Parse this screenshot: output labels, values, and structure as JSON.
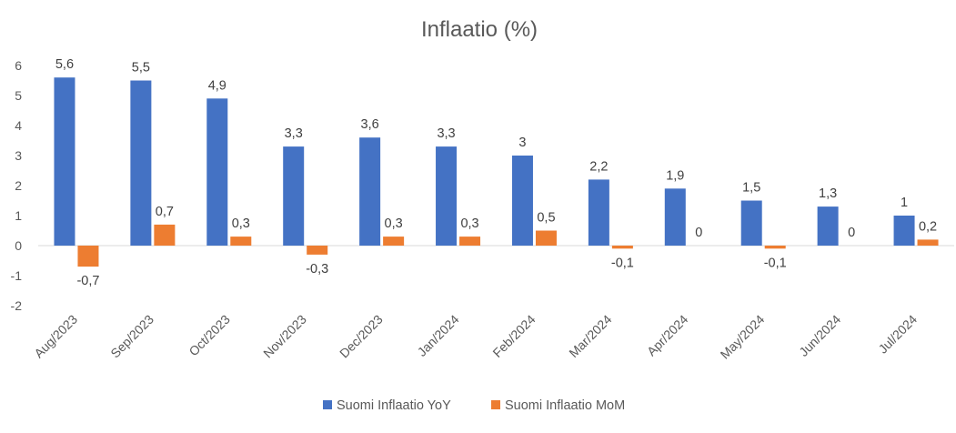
{
  "chart_data": {
    "type": "bar",
    "title": "Inflaatio (%)",
    "categories": [
      "Aug/2023",
      "Sep/2023",
      "Oct/2023",
      "Nov/2023",
      "Dec/2023",
      "Jan/2024",
      "Feb/2024",
      "Mar/2024",
      "Apr/2024",
      "May/2024",
      "Jun/2024",
      "Jul/2024"
    ],
    "series": [
      {
        "name": "Suomi Inflaatio YoY",
        "color": "#4472C4",
        "values": [
          5.6,
          5.5,
          4.9,
          3.3,
          3.6,
          3.3,
          3.0,
          2.2,
          1.9,
          1.5,
          1.3,
          1.0
        ],
        "labels": [
          "5,6",
          "5,5",
          "4,9",
          "3,3",
          "3,6",
          "3,3",
          "3",
          "2,2",
          "1,9",
          "1,5",
          "1,3",
          "1"
        ]
      },
      {
        "name": "Suomi Inflaatio MoM",
        "color": "#ED7D31",
        "values": [
          -0.7,
          0.7,
          0.3,
          -0.3,
          0.3,
          0.3,
          0.5,
          -0.1,
          0,
          -0.1,
          0,
          0.2
        ],
        "labels": [
          "-0,7",
          "0,7",
          "0,3",
          "-0,3",
          "0,3",
          "0,3",
          "0,5",
          "-0,1",
          "0",
          "-0,1",
          "0",
          "0,2"
        ]
      }
    ],
    "ylim": [
      -2,
      6
    ],
    "yticks": [
      -2,
      -1,
      0,
      1,
      2,
      3,
      4,
      5,
      6
    ],
    "grid": false,
    "legend": "bottom",
    "xlabel": "",
    "ylabel": ""
  }
}
